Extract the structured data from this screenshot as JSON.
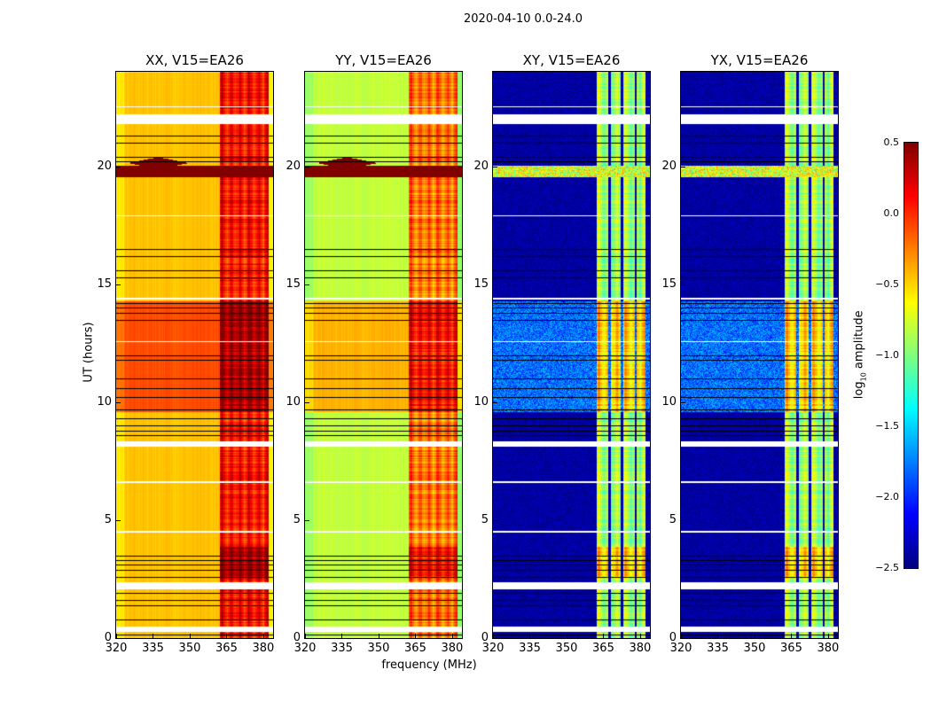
{
  "chart_data": {
    "type": "heatmap",
    "title": "2020-04-10 0.0-24.0",
    "xlabel": "frequency (MHz)",
    "ylabel": "UT (hours)",
    "xlim": [
      320,
      384
    ],
    "ylim": [
      0,
      24
    ],
    "xticks": [
      "320",
      "335",
      "350",
      "365",
      "380"
    ],
    "xtick_values": [
      320,
      335,
      350,
      365,
      380
    ],
    "yticks": [
      "0",
      "5",
      "10",
      "15",
      "20"
    ],
    "ytick_values": [
      0,
      5,
      10,
      15,
      20
    ],
    "colormap": "jet",
    "colorbar": {
      "label_main": "log",
      "label_sub": "10",
      "label_rest": " amplitude",
      "range": [
        -2.5,
        0.5
      ],
      "ticks": [
        "0.5",
        "0.0",
        "−0.5",
        "−1.0",
        "−1.5",
        "−2.0",
        "−2.5"
      ],
      "tick_values": [
        0.5,
        0.0,
        -0.5,
        -1.0,
        -1.5,
        -2.0,
        -2.5
      ]
    },
    "panels": [
      {
        "title": "XX, V15=EA26",
        "base": -0.45,
        "day_block": -0.1,
        "rfi": 0.1,
        "flare": 0.5
      },
      {
        "title": "YY, V15=EA26",
        "base": -0.8,
        "day_block": -0.4,
        "rfi": -0.2,
        "flare": 0.5
      },
      {
        "title": "XY, V15=EA26",
        "base": -2.4,
        "day_block": -1.8,
        "rfi": -0.9,
        "flare": -0.9
      },
      {
        "title": "YX, V15=EA26",
        "base": -2.4,
        "day_block": -1.8,
        "rfi": -0.9,
        "flare": -0.9
      }
    ],
    "rfi_band_mhz": [
      362,
      382
    ],
    "day_block_hours": [
      9.6,
      14.3
    ],
    "flare_hours": [
      19.55,
      20.05
    ],
    "flagged_hours": [
      [
        21.8,
        22.2
      ],
      [
        8.15,
        8.35
      ],
      [
        2.1,
        2.4
      ],
      [
        0.3,
        0.5
      ],
      [
        14.35,
        14.45
      ],
      [
        12.55,
        12.6
      ],
      [
        22.5,
        22.55
      ],
      [
        17.9,
        17.95
      ],
      [
        4.5,
        4.55
      ],
      [
        6.6,
        6.65
      ]
    ],
    "black_line_hours": [
      21.3,
      21.0,
      20.4,
      20.2,
      16.5,
      16.2,
      15.6,
      15.3,
      14.2,
      14.0,
      13.8,
      13.5,
      12.0,
      11.8,
      11.0,
      10.6,
      10.2,
      9.7,
      9.3,
      9.0,
      8.8,
      8.6,
      3.5,
      3.3,
      3.1,
      2.9,
      2.6,
      1.9,
      1.6,
      1.4,
      0.8,
      0.15
    ]
  }
}
